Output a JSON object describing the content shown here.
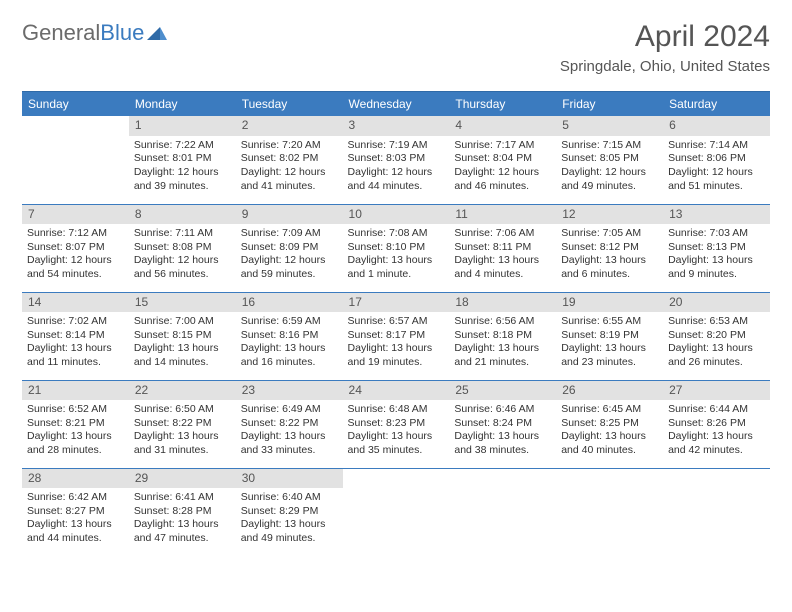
{
  "brand": {
    "part1": "General",
    "part2": "Blue"
  },
  "title": "April 2024",
  "location": "Springdale, Ohio, United States",
  "header_bg": "#3b7bbf",
  "days_of_week": [
    "Sunday",
    "Monday",
    "Tuesday",
    "Wednesday",
    "Thursday",
    "Friday",
    "Saturday"
  ],
  "calendar": {
    "type": "table",
    "first_day_column": 1,
    "num_days": 30,
    "cell_bg": "#ffffff",
    "daynum_bg": "#e2e2e2",
    "border_color": "#3b7bbf",
    "font_size_body": 10.5,
    "font_size_header": 12,
    "days": [
      {
        "n": 1,
        "sunrise": "7:22 AM",
        "sunset": "8:01 PM",
        "daylight_h": 12,
        "daylight_m": 39
      },
      {
        "n": 2,
        "sunrise": "7:20 AM",
        "sunset": "8:02 PM",
        "daylight_h": 12,
        "daylight_m": 41
      },
      {
        "n": 3,
        "sunrise": "7:19 AM",
        "sunset": "8:03 PM",
        "daylight_h": 12,
        "daylight_m": 44
      },
      {
        "n": 4,
        "sunrise": "7:17 AM",
        "sunset": "8:04 PM",
        "daylight_h": 12,
        "daylight_m": 46
      },
      {
        "n": 5,
        "sunrise": "7:15 AM",
        "sunset": "8:05 PM",
        "daylight_h": 12,
        "daylight_m": 49
      },
      {
        "n": 6,
        "sunrise": "7:14 AM",
        "sunset": "8:06 PM",
        "daylight_h": 12,
        "daylight_m": 51
      },
      {
        "n": 7,
        "sunrise": "7:12 AM",
        "sunset": "8:07 PM",
        "daylight_h": 12,
        "daylight_m": 54
      },
      {
        "n": 8,
        "sunrise": "7:11 AM",
        "sunset": "8:08 PM",
        "daylight_h": 12,
        "daylight_m": 56
      },
      {
        "n": 9,
        "sunrise": "7:09 AM",
        "sunset": "8:09 PM",
        "daylight_h": 12,
        "daylight_m": 59
      },
      {
        "n": 10,
        "sunrise": "7:08 AM",
        "sunset": "8:10 PM",
        "daylight_h": 13,
        "daylight_m": 1
      },
      {
        "n": 11,
        "sunrise": "7:06 AM",
        "sunset": "8:11 PM",
        "daylight_h": 13,
        "daylight_m": 4
      },
      {
        "n": 12,
        "sunrise": "7:05 AM",
        "sunset": "8:12 PM",
        "daylight_h": 13,
        "daylight_m": 6
      },
      {
        "n": 13,
        "sunrise": "7:03 AM",
        "sunset": "8:13 PM",
        "daylight_h": 13,
        "daylight_m": 9
      },
      {
        "n": 14,
        "sunrise": "7:02 AM",
        "sunset": "8:14 PM",
        "daylight_h": 13,
        "daylight_m": 11
      },
      {
        "n": 15,
        "sunrise": "7:00 AM",
        "sunset": "8:15 PM",
        "daylight_h": 13,
        "daylight_m": 14
      },
      {
        "n": 16,
        "sunrise": "6:59 AM",
        "sunset": "8:16 PM",
        "daylight_h": 13,
        "daylight_m": 16
      },
      {
        "n": 17,
        "sunrise": "6:57 AM",
        "sunset": "8:17 PM",
        "daylight_h": 13,
        "daylight_m": 19
      },
      {
        "n": 18,
        "sunrise": "6:56 AM",
        "sunset": "8:18 PM",
        "daylight_h": 13,
        "daylight_m": 21
      },
      {
        "n": 19,
        "sunrise": "6:55 AM",
        "sunset": "8:19 PM",
        "daylight_h": 13,
        "daylight_m": 23
      },
      {
        "n": 20,
        "sunrise": "6:53 AM",
        "sunset": "8:20 PM",
        "daylight_h": 13,
        "daylight_m": 26
      },
      {
        "n": 21,
        "sunrise": "6:52 AM",
        "sunset": "8:21 PM",
        "daylight_h": 13,
        "daylight_m": 28
      },
      {
        "n": 22,
        "sunrise": "6:50 AM",
        "sunset": "8:22 PM",
        "daylight_h": 13,
        "daylight_m": 31
      },
      {
        "n": 23,
        "sunrise": "6:49 AM",
        "sunset": "8:22 PM",
        "daylight_h": 13,
        "daylight_m": 33
      },
      {
        "n": 24,
        "sunrise": "6:48 AM",
        "sunset": "8:23 PM",
        "daylight_h": 13,
        "daylight_m": 35
      },
      {
        "n": 25,
        "sunrise": "6:46 AM",
        "sunset": "8:24 PM",
        "daylight_h": 13,
        "daylight_m": 38
      },
      {
        "n": 26,
        "sunrise": "6:45 AM",
        "sunset": "8:25 PM",
        "daylight_h": 13,
        "daylight_m": 40
      },
      {
        "n": 27,
        "sunrise": "6:44 AM",
        "sunset": "8:26 PM",
        "daylight_h": 13,
        "daylight_m": 42
      },
      {
        "n": 28,
        "sunrise": "6:42 AM",
        "sunset": "8:27 PM",
        "daylight_h": 13,
        "daylight_m": 44
      },
      {
        "n": 29,
        "sunrise": "6:41 AM",
        "sunset": "8:28 PM",
        "daylight_h": 13,
        "daylight_m": 47
      },
      {
        "n": 30,
        "sunrise": "6:40 AM",
        "sunset": "8:29 PM",
        "daylight_h": 13,
        "daylight_m": 49
      }
    ]
  },
  "labels": {
    "sunrise": "Sunrise:",
    "sunset": "Sunset:",
    "daylight_prefix": "Daylight:",
    "hours_word": "hours",
    "and_word": "and",
    "minutes_word": "minutes",
    "minute_word": "minute"
  }
}
